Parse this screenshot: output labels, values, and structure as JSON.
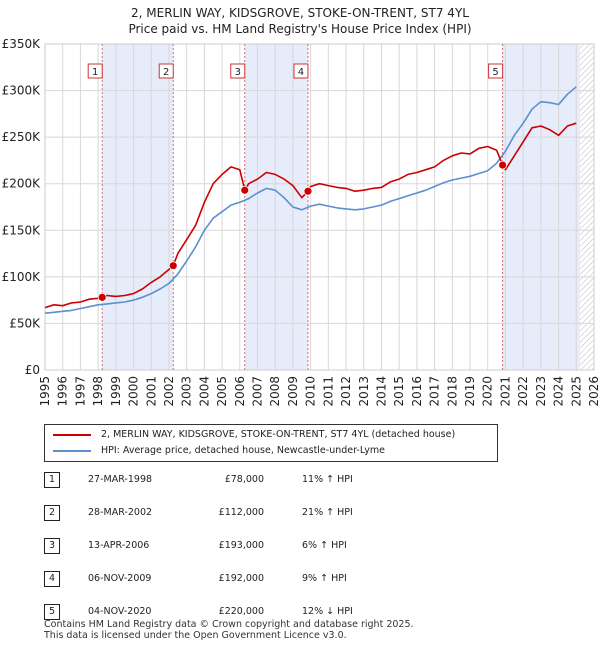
{
  "title": {
    "line1": "2, MERLIN WAY, KIDSGROVE, STOKE-ON-TRENT, ST7 4YL",
    "line2": "Price paid vs. HM Land Registry's House Price Index (HPI)"
  },
  "legend": {
    "items": [
      {
        "label": "2, MERLIN WAY, KIDSGROVE, STOKE-ON-TRENT, ST7 4YL (detached house)",
        "color": "#cc0000"
      },
      {
        "label": "HPI: Average price, detached house, Newcastle-under-Lyme",
        "color": "#5b8fd0"
      }
    ]
  },
  "transactions": [
    {
      "num": "1",
      "date": "27-MAR-1998",
      "price": "£78,000",
      "hpi": "11% ↑ HPI"
    },
    {
      "num": "2",
      "date": "28-MAR-2002",
      "price": "£112,000",
      "hpi": "21% ↑ HPI"
    },
    {
      "num": "3",
      "date": "13-APR-2006",
      "price": "£193,000",
      "hpi": "6% ↑ HPI"
    },
    {
      "num": "4",
      "date": "06-NOV-2009",
      "price": "£192,000",
      "hpi": "9% ↑ HPI"
    },
    {
      "num": "5",
      "date": "04-NOV-2020",
      "price": "£220,000",
      "hpi": "12% ↓ HPI"
    }
  ],
  "footer": {
    "line1": "Contains HM Land Registry data © Crown copyright and database right 2025.",
    "line2": "This data is licensed under the Open Government Licence v3.0."
  },
  "chart_data": {
    "type": "line",
    "title": "2, MERLIN WAY, KIDSGROVE, STOKE-ON-TRENT, ST7 4YL",
    "subtitle": "Price paid vs. HM Land Registry's House Price Index (HPI)",
    "xlabel": "",
    "ylabel": "",
    "xlim": [
      1995,
      2026
    ],
    "ylim": [
      0,
      350000
    ],
    "x_ticks": [
      "1995",
      "1996",
      "1997",
      "1998",
      "1999",
      "2000",
      "2001",
      "2002",
      "2003",
      "2004",
      "2005",
      "2006",
      "2007",
      "2008",
      "2009",
      "2010",
      "2011",
      "2012",
      "2013",
      "2014",
      "2015",
      "2016",
      "2017",
      "2018",
      "2019",
      "2020",
      "2021",
      "2022",
      "2023",
      "2024",
      "2025",
      "2026"
    ],
    "y_ticks": [
      {
        "value": 0,
        "label": "£0"
      },
      {
        "value": 50000,
        "label": "£50K"
      },
      {
        "value": 100000,
        "label": "£100K"
      },
      {
        "value": 150000,
        "label": "£150K"
      },
      {
        "value": 200000,
        "label": "£200K"
      },
      {
        "value": 250000,
        "label": "£250K"
      },
      {
        "value": 300000,
        "label": "£300K"
      },
      {
        "value": 350000,
        "label": "£350K"
      }
    ],
    "grid": true,
    "shaded_periods": [
      [
        1998.23,
        2002.24
      ],
      [
        2006.28,
        2009.85
      ],
      [
        2020.84,
        2025.2
      ]
    ],
    "hatched_region": [
      2025.2,
      2026
    ],
    "sale_markers": [
      {
        "label": "1",
        "x": 1998.23,
        "y": 78000
      },
      {
        "label": "2",
        "x": 2002.24,
        "y": 112000
      },
      {
        "label": "3",
        "x": 2006.28,
        "y": 193000
      },
      {
        "label": "4",
        "x": 2009.85,
        "y": 192000
      },
      {
        "label": "5",
        "x": 2020.84,
        "y": 220000
      }
    ],
    "series": [
      {
        "name": "2, MERLIN WAY, KIDSGROVE, STOKE-ON-TRENT, ST7 4YL (detached house)",
        "color": "#cc0000",
        "points": [
          [
            1995,
            67000
          ],
          [
            1995.5,
            70000
          ],
          [
            1996,
            69000
          ],
          [
            1996.5,
            72000
          ],
          [
            1997,
            73000
          ],
          [
            1997.5,
            76000
          ],
          [
            1998,
            77000
          ],
          [
            1998.23,
            78000
          ],
          [
            1998.5,
            80000
          ],
          [
            1999,
            79000
          ],
          [
            1999.5,
            80000
          ],
          [
            2000,
            82000
          ],
          [
            2000.5,
            87000
          ],
          [
            2001,
            94000
          ],
          [
            2001.5,
            100000
          ],
          [
            2002,
            108000
          ],
          [
            2002.24,
            112000
          ],
          [
            2002.5,
            125000
          ],
          [
            2003,
            140000
          ],
          [
            2003.5,
            155000
          ],
          [
            2004,
            180000
          ],
          [
            2004.5,
            200000
          ],
          [
            2005,
            210000
          ],
          [
            2005.5,
            218000
          ],
          [
            2006,
            215000
          ],
          [
            2006.28,
            193000
          ],
          [
            2006.5,
            200000
          ],
          [
            2007,
            205000
          ],
          [
            2007.5,
            212000
          ],
          [
            2008,
            210000
          ],
          [
            2008.5,
            205000
          ],
          [
            2009,
            198000
          ],
          [
            2009.5,
            185000
          ],
          [
            2009.85,
            192000
          ],
          [
            2010,
            197000
          ],
          [
            2010.5,
            200000
          ],
          [
            2011,
            198000
          ],
          [
            2011.5,
            196000
          ],
          [
            2012,
            195000
          ],
          [
            2012.5,
            192000
          ],
          [
            2013,
            193000
          ],
          [
            2013.5,
            195000
          ],
          [
            2014,
            196000
          ],
          [
            2014.5,
            202000
          ],
          [
            2015,
            205000
          ],
          [
            2015.5,
            210000
          ],
          [
            2016,
            212000
          ],
          [
            2016.5,
            215000
          ],
          [
            2017,
            218000
          ],
          [
            2017.5,
            225000
          ],
          [
            2018,
            230000
          ],
          [
            2018.5,
            233000
          ],
          [
            2019,
            232000
          ],
          [
            2019.5,
            238000
          ],
          [
            2020,
            240000
          ],
          [
            2020.5,
            236000
          ],
          [
            2020.84,
            220000
          ],
          [
            2021,
            215000
          ],
          [
            2021.5,
            230000
          ],
          [
            2022,
            245000
          ],
          [
            2022.5,
            260000
          ],
          [
            2023,
            262000
          ],
          [
            2023.5,
            258000
          ],
          [
            2024,
            252000
          ],
          [
            2024.5,
            262000
          ],
          [
            2025,
            265000
          ]
        ]
      },
      {
        "name": "HPI: Average price, detached house, Newcastle-under-Lyme",
        "color": "#5b8fd0",
        "points": [
          [
            1995,
            61000
          ],
          [
            1995.5,
            62000
          ],
          [
            1996,
            63000
          ],
          [
            1996.5,
            64000
          ],
          [
            1997,
            66000
          ],
          [
            1997.5,
            68000
          ],
          [
            1998,
            70000
          ],
          [
            1998.5,
            71000
          ],
          [
            1999,
            72000
          ],
          [
            1999.5,
            73000
          ],
          [
            2000,
            75000
          ],
          [
            2000.5,
            78000
          ],
          [
            2001,
            82000
          ],
          [
            2001.5,
            87000
          ],
          [
            2002,
            93000
          ],
          [
            2002.5,
            103000
          ],
          [
            2003,
            117000
          ],
          [
            2003.5,
            132000
          ],
          [
            2004,
            150000
          ],
          [
            2004.5,
            163000
          ],
          [
            2005,
            170000
          ],
          [
            2005.5,
            177000
          ],
          [
            2006,
            180000
          ],
          [
            2006.5,
            184000
          ],
          [
            2007,
            190000
          ],
          [
            2007.5,
            195000
          ],
          [
            2008,
            193000
          ],
          [
            2008.5,
            185000
          ],
          [
            2009,
            175000
          ],
          [
            2009.5,
            172000
          ],
          [
            2010,
            176000
          ],
          [
            2010.5,
            178000
          ],
          [
            2011,
            176000
          ],
          [
            2011.5,
            174000
          ],
          [
            2012,
            173000
          ],
          [
            2012.5,
            172000
          ],
          [
            2013,
            173000
          ],
          [
            2013.5,
            175000
          ],
          [
            2014,
            177000
          ],
          [
            2014.5,
            181000
          ],
          [
            2015,
            184000
          ],
          [
            2015.5,
            187000
          ],
          [
            2016,
            190000
          ],
          [
            2016.5,
            193000
          ],
          [
            2017,
            197000
          ],
          [
            2017.5,
            201000
          ],
          [
            2018,
            204000
          ],
          [
            2018.5,
            206000
          ],
          [
            2019,
            208000
          ],
          [
            2019.5,
            211000
          ],
          [
            2020,
            214000
          ],
          [
            2020.5,
            222000
          ],
          [
            2021,
            235000
          ],
          [
            2021.5,
            252000
          ],
          [
            2022,
            265000
          ],
          [
            2022.5,
            280000
          ],
          [
            2023,
            288000
          ],
          [
            2023.5,
            287000
          ],
          [
            2024,
            285000
          ],
          [
            2024.5,
            296000
          ],
          [
            2025,
            304000
          ]
        ]
      }
    ]
  }
}
